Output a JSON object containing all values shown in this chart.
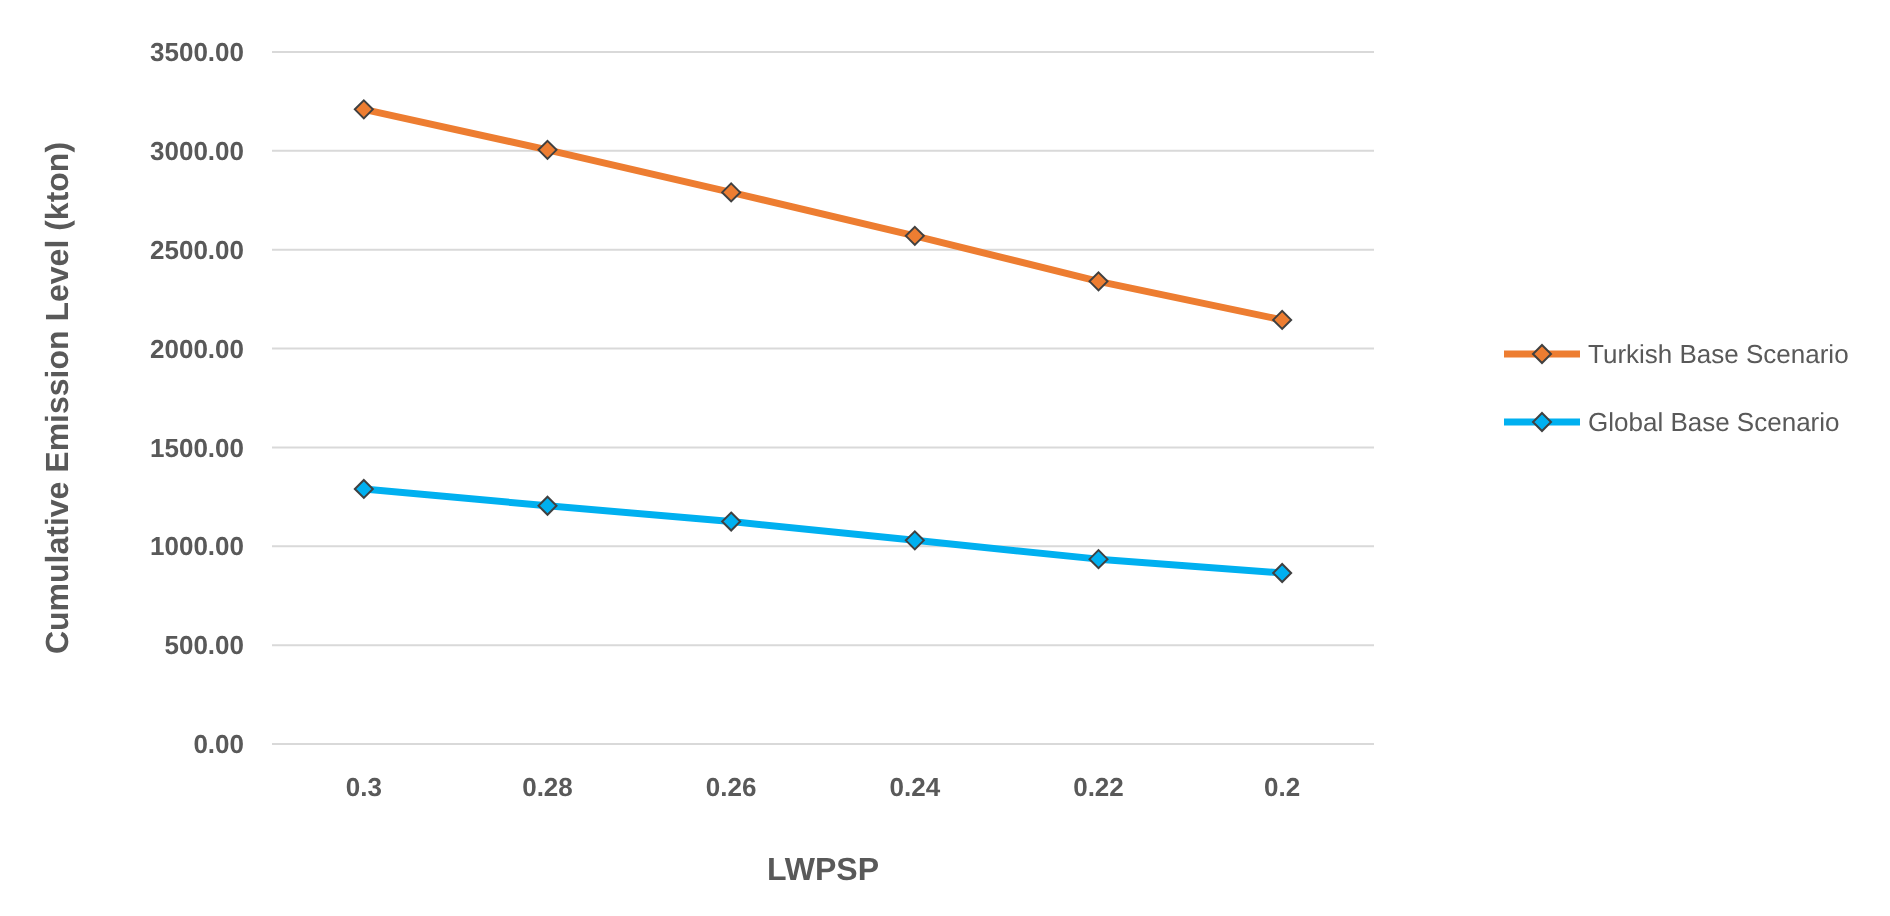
{
  "chart_data": {
    "type": "line",
    "xlabel": "LWPSP",
    "ylabel": "Cumulative Emission Level (kton)",
    "categories": [
      "0.3",
      "0.28",
      "0.26",
      "0.24",
      "0.22",
      "0.2"
    ],
    "series": [
      {
        "name": "Turkish Base Scenario",
        "color": "#ed7d31",
        "values": [
          3210,
          3005,
          2790,
          2570,
          2340,
          2145
        ]
      },
      {
        "name": "Global Base Scenario",
        "color": "#00b0f0",
        "values": [
          1290,
          1205,
          1125,
          1030,
          935,
          865
        ]
      }
    ],
    "ylim": [
      0,
      3500
    ],
    "yticks": [
      {
        "value": 0,
        "label": "0.00"
      },
      {
        "value": 500,
        "label": "500.00"
      },
      {
        "value": 1000,
        "label": "1000.00"
      },
      {
        "value": 1500,
        "label": "1500.00"
      },
      {
        "value": 2000,
        "label": "2000.00"
      },
      {
        "value": 2500,
        "label": "2500.00"
      },
      {
        "value": 3000,
        "label": "3000.00"
      },
      {
        "value": 3500,
        "label": "3500.00"
      }
    ],
    "grid": "y",
    "legend": "right",
    "marker": "diamond",
    "line_style": "solid"
  }
}
